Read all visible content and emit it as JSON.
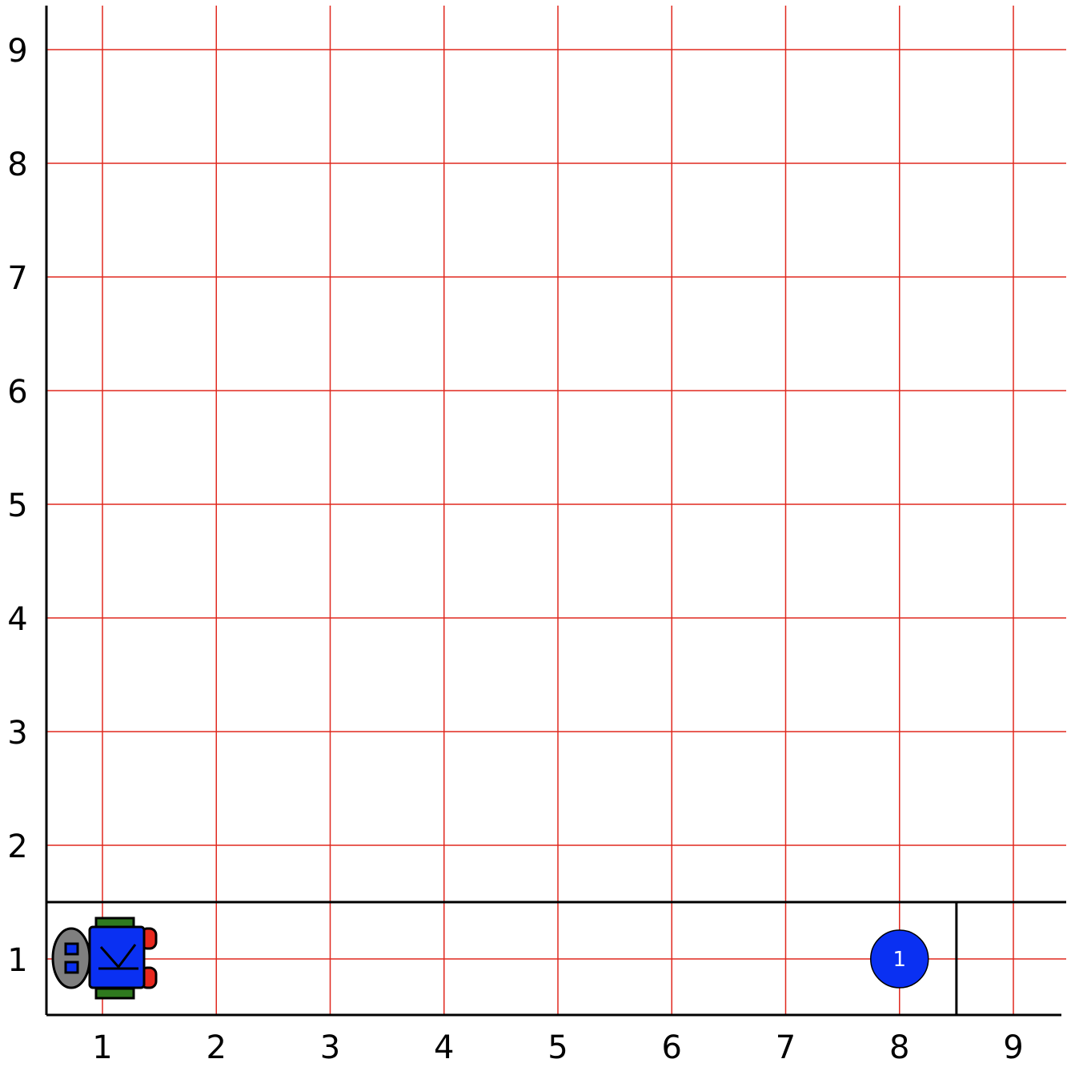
{
  "world": {
    "columns": 9,
    "rows": 9,
    "x_labels": [
      "1",
      "2",
      "3",
      "4",
      "5",
      "6",
      "7",
      "8",
      "9"
    ],
    "y_labels": [
      "1",
      "2",
      "3",
      "4",
      "5",
      "6",
      "7",
      "8",
      "9"
    ],
    "grid_color": "#e0291f",
    "wall_color": "#000000"
  },
  "walls": [
    {
      "type": "horizontal-top-of-row",
      "row": 1,
      "from_col": 1,
      "to_col": 9
    },
    {
      "type": "vertical-east-of-col",
      "col": 8,
      "row": 1
    }
  ],
  "robot": {
    "col": 1,
    "row": 1,
    "facing": "east",
    "body_color": "#0a30f2",
    "head_color": "#7f7f7f",
    "wheel_color": "#2f7a1e",
    "foot_color": "#e8281e"
  },
  "beepers": [
    {
      "col": 8,
      "row": 1,
      "count": "1",
      "color": "#0a30f2"
    }
  ]
}
